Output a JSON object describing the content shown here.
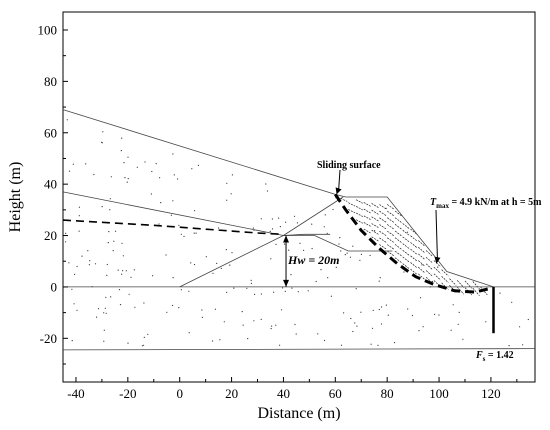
{
  "chart_data": {
    "type": "diagram",
    "xlabel": "Distance (m)",
    "ylabel": "Height (m)",
    "xlim": [
      -45,
      137
    ],
    "ylim": [
      -37,
      107
    ],
    "xticks": [
      -40,
      -20,
      0,
      20,
      40,
      60,
      80,
      100,
      120
    ],
    "yticks": [
      -20,
      0,
      20,
      40,
      60,
      80,
      100
    ],
    "annotations": {
      "sliding_surface": "Sliding surface",
      "tmax_prefix": "T",
      "tmax_sub": "max",
      "tmax_suffix": " = 4.9 kN/m at h = 5m",
      "hw": "Hw = 20m",
      "fs_prefix": "F",
      "fs_sub": "s",
      "fs_suffix": " = 1.42"
    },
    "geometry": {
      "ground_line": [
        [
          -45,
          0
        ],
        [
          137,
          0
        ]
      ],
      "lower_boundary": [
        [
          -45,
          -24.5
        ],
        [
          137,
          -24
        ]
      ],
      "top_surface": [
        [
          -45,
          69
        ],
        [
          60,
          36
        ],
        [
          64,
          35
        ],
        [
          80,
          35
        ],
        [
          103,
          6
        ],
        [
          121,
          0
        ]
      ],
      "layer_boundary": [
        [
          -45,
          37
        ],
        [
          40,
          20
        ],
        [
          48,
          20.5
        ],
        [
          58,
          20.5
        ]
      ],
      "inner_boundary_upper": [
        [
          40,
          20
        ],
        [
          63,
          35
        ]
      ],
      "inner_boundary_lower": [
        [
          0,
          0
        ],
        [
          40,
          20
        ],
        [
          52,
          20
        ],
        [
          65,
          14
        ],
        [
          70,
          14
        ],
        [
          82,
          14
        ]
      ],
      "water_table": [
        [
          -45,
          26
        ],
        [
          -10,
          24
        ],
        [
          30,
          21
        ],
        [
          40,
          20.5
        ]
      ],
      "sliding_surface": [
        [
          60,
          36
        ],
        [
          64,
          30
        ],
        [
          70,
          22
        ],
        [
          77,
          15
        ],
        [
          84,
          9
        ],
        [
          91,
          4
        ],
        [
          98,
          1
        ],
        [
          106,
          -1.5
        ],
        [
          114,
          -2
        ],
        [
          120,
          -0.5
        ]
      ],
      "wall": [
        [
          121,
          0
        ],
        [
          121,
          -18
        ]
      ],
      "hw_arrow": [
        [
          41,
          20
        ],
        [
          41,
          0
        ]
      ]
    },
    "reinforcement": {
      "x_range": [
        61,
        121
      ],
      "count": 14
    }
  }
}
